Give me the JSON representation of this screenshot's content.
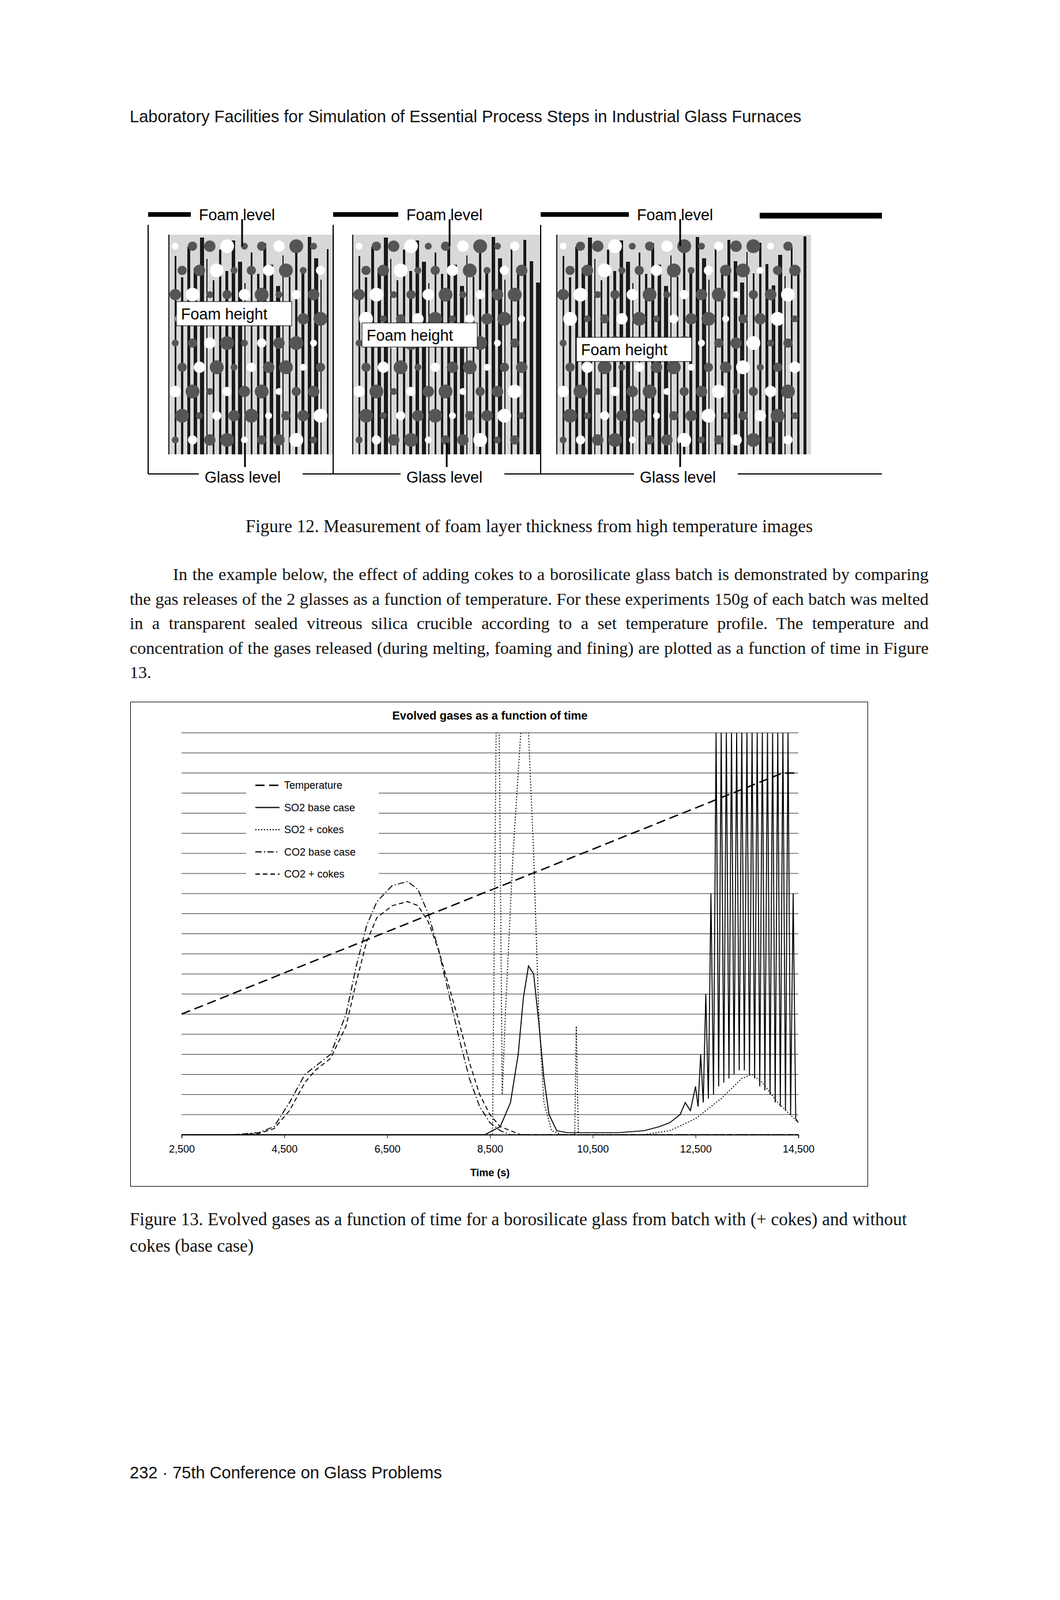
{
  "header": "Laboratory Facilities for Simulation of Essential Process Steps in Industrial Glass Furnaces",
  "figure_12": {
    "panels": [
      {
        "top_label": "Foam level",
        "middle_label": "Foam height",
        "bottom_label": "Glass level"
      },
      {
        "top_label": "Foam level",
        "middle_label": "Foam height",
        "bottom_label": "Glass level"
      },
      {
        "top_label": "Foam level",
        "middle_label": "Foam height",
        "bottom_label": "Glass level"
      }
    ],
    "caption": "Figure 12. Measurement of foam layer thickness from high temperature images"
  },
  "paragraph": "In the example below, the effect of adding cokes to a borosilicate glass batch is demonstrated by comparing the gas releases of the 2 glasses as a function of temperature. For these experiments 150g of each batch was melted in a transparent sealed vitreous silica crucible according to a set temperature profile. The temperature and concentration of the gases released (during melting, foaming and fining) are plotted as a function of time in Figure 13.",
  "chart_data": {
    "type": "line",
    "title": "Evolved gases as a function of time",
    "x_label": "Time (s)",
    "xlim": [
      2500,
      14500
    ],
    "xticks": [
      {
        "value": 2500,
        "label": "2,500"
      },
      {
        "value": 4500,
        "label": "4,500"
      },
      {
        "value": 6500,
        "label": "6,500"
      },
      {
        "value": 8500,
        "label": "8,500"
      },
      {
        "value": 10500,
        "label": "10,500"
      },
      {
        "value": 12500,
        "label": "12,500"
      },
      {
        "value": 14500,
        "label": "14,500"
      }
    ],
    "ylim": [
      0,
      100
    ],
    "yticks": [
      0,
      5,
      10,
      15,
      20,
      25,
      30,
      35,
      40,
      45,
      50,
      55,
      60,
      65,
      70,
      75,
      80,
      85,
      90,
      95,
      100
    ],
    "grid": true,
    "tick_labels": "x",
    "legend": "top-left",
    "series": [
      {
        "name": "Temperature",
        "color": "#000000",
        "line_style": "long-dash",
        "x": [
          2500,
          14000,
          14200,
          14500
        ],
        "values": [
          30,
          89,
          90,
          90
        ]
      },
      {
        "name": "SO2 base case",
        "color": "#000000",
        "line_style": "solid",
        "x": [
          2500,
          8400,
          8700,
          8900,
          9050,
          9150,
          9250,
          9350,
          9450,
          9550,
          9650,
          9800,
          10000,
          11000,
          11500,
          11800,
          12000,
          12100,
          12200,
          12300,
          12400,
          12500,
          12550,
          12600,
          12650,
          12700,
          12750,
          12800,
          12850,
          12900,
          12950,
          13000,
          13050,
          13100,
          13150,
          13200,
          13250,
          13300,
          13350,
          13400,
          13450,
          13500,
          13550,
          13600,
          13650,
          13700,
          13750,
          13800,
          13850,
          13900,
          13950,
          14000,
          14050,
          14100,
          14150,
          14200,
          14250,
          14300,
          14350,
          14400,
          14450,
          14500
        ],
        "values": [
          0,
          0,
          2,
          8,
          20,
          34,
          42,
          40,
          28,
          14,
          5,
          1,
          0.5,
          0.5,
          1,
          2,
          3,
          4,
          5,
          8,
          6,
          12,
          7,
          20,
          8,
          35,
          9,
          60,
          10,
          100,
          12,
          100,
          13,
          100,
          14,
          100,
          15,
          100,
          16,
          100,
          16,
          100,
          15,
          100,
          14,
          100,
          12,
          100,
          11,
          100,
          10,
          100,
          8,
          100,
          7,
          100,
          6,
          100,
          5,
          60,
          4,
          3
        ]
      },
      {
        "name": "SO2 + cokes",
        "color": "#000000",
        "line_style": "dotted",
        "x": [
          2500,
          8550,
          8620,
          8680,
          8740,
          8800,
          8950,
          9100,
          9250,
          9350,
          9450,
          9550,
          9700,
          9900,
          10150,
          10180,
          10220,
          11500,
          12000,
          12500,
          13000,
          13400,
          13600,
          13800,
          14100,
          14500
        ],
        "values": [
          0,
          0,
          100,
          100,
          10,
          30,
          70,
          100,
          100,
          70,
          30,
          8,
          1,
          0,
          0,
          27,
          0,
          0,
          1,
          4,
          9,
          14,
          15,
          13,
          8,
          3
        ]
      },
      {
        "name": "CO2 base case",
        "color": "#000000",
        "line_style": "dash-dot",
        "x": [
          2500,
          3500,
          4000,
          4300,
          4600,
          4900,
          5100,
          5400,
          5700,
          5900,
          6100,
          6300,
          6600,
          6900,
          7100,
          7300,
          7500,
          7700,
          7900,
          8100,
          8300,
          8500,
          8700,
          8900,
          14500
        ],
        "values": [
          0,
          0,
          0.5,
          2,
          8,
          15,
          17,
          20,
          30,
          42,
          52,
          58,
          62,
          63,
          61,
          55,
          46,
          35,
          24,
          14,
          7,
          3,
          1,
          0,
          0
        ]
      },
      {
        "name": "CO2 + cokes",
        "color": "#000000",
        "line_style": "dashed",
        "x": [
          2500,
          3500,
          4000,
          4300,
          4600,
          4900,
          5100,
          5400,
          5700,
          5900,
          6100,
          6300,
          6600,
          6900,
          7100,
          7300,
          7500,
          7700,
          7900,
          8100,
          8300,
          8500,
          8700,
          8900,
          9100,
          14500
        ],
        "values": [
          0,
          0,
          0.3,
          1.5,
          6,
          13,
          16,
          19,
          27,
          38,
          48,
          54,
          57,
          58,
          57,
          53,
          46,
          37,
          28,
          18,
          10,
          5,
          2,
          1,
          0,
          0
        ]
      }
    ]
  },
  "figure_13_caption": "Figure 13. Evolved gases as a function of time for a borosilicate glass from batch with (+ cokes) and without cokes (base case)",
  "footer": "232 · 75th Conference on Glass Problems"
}
